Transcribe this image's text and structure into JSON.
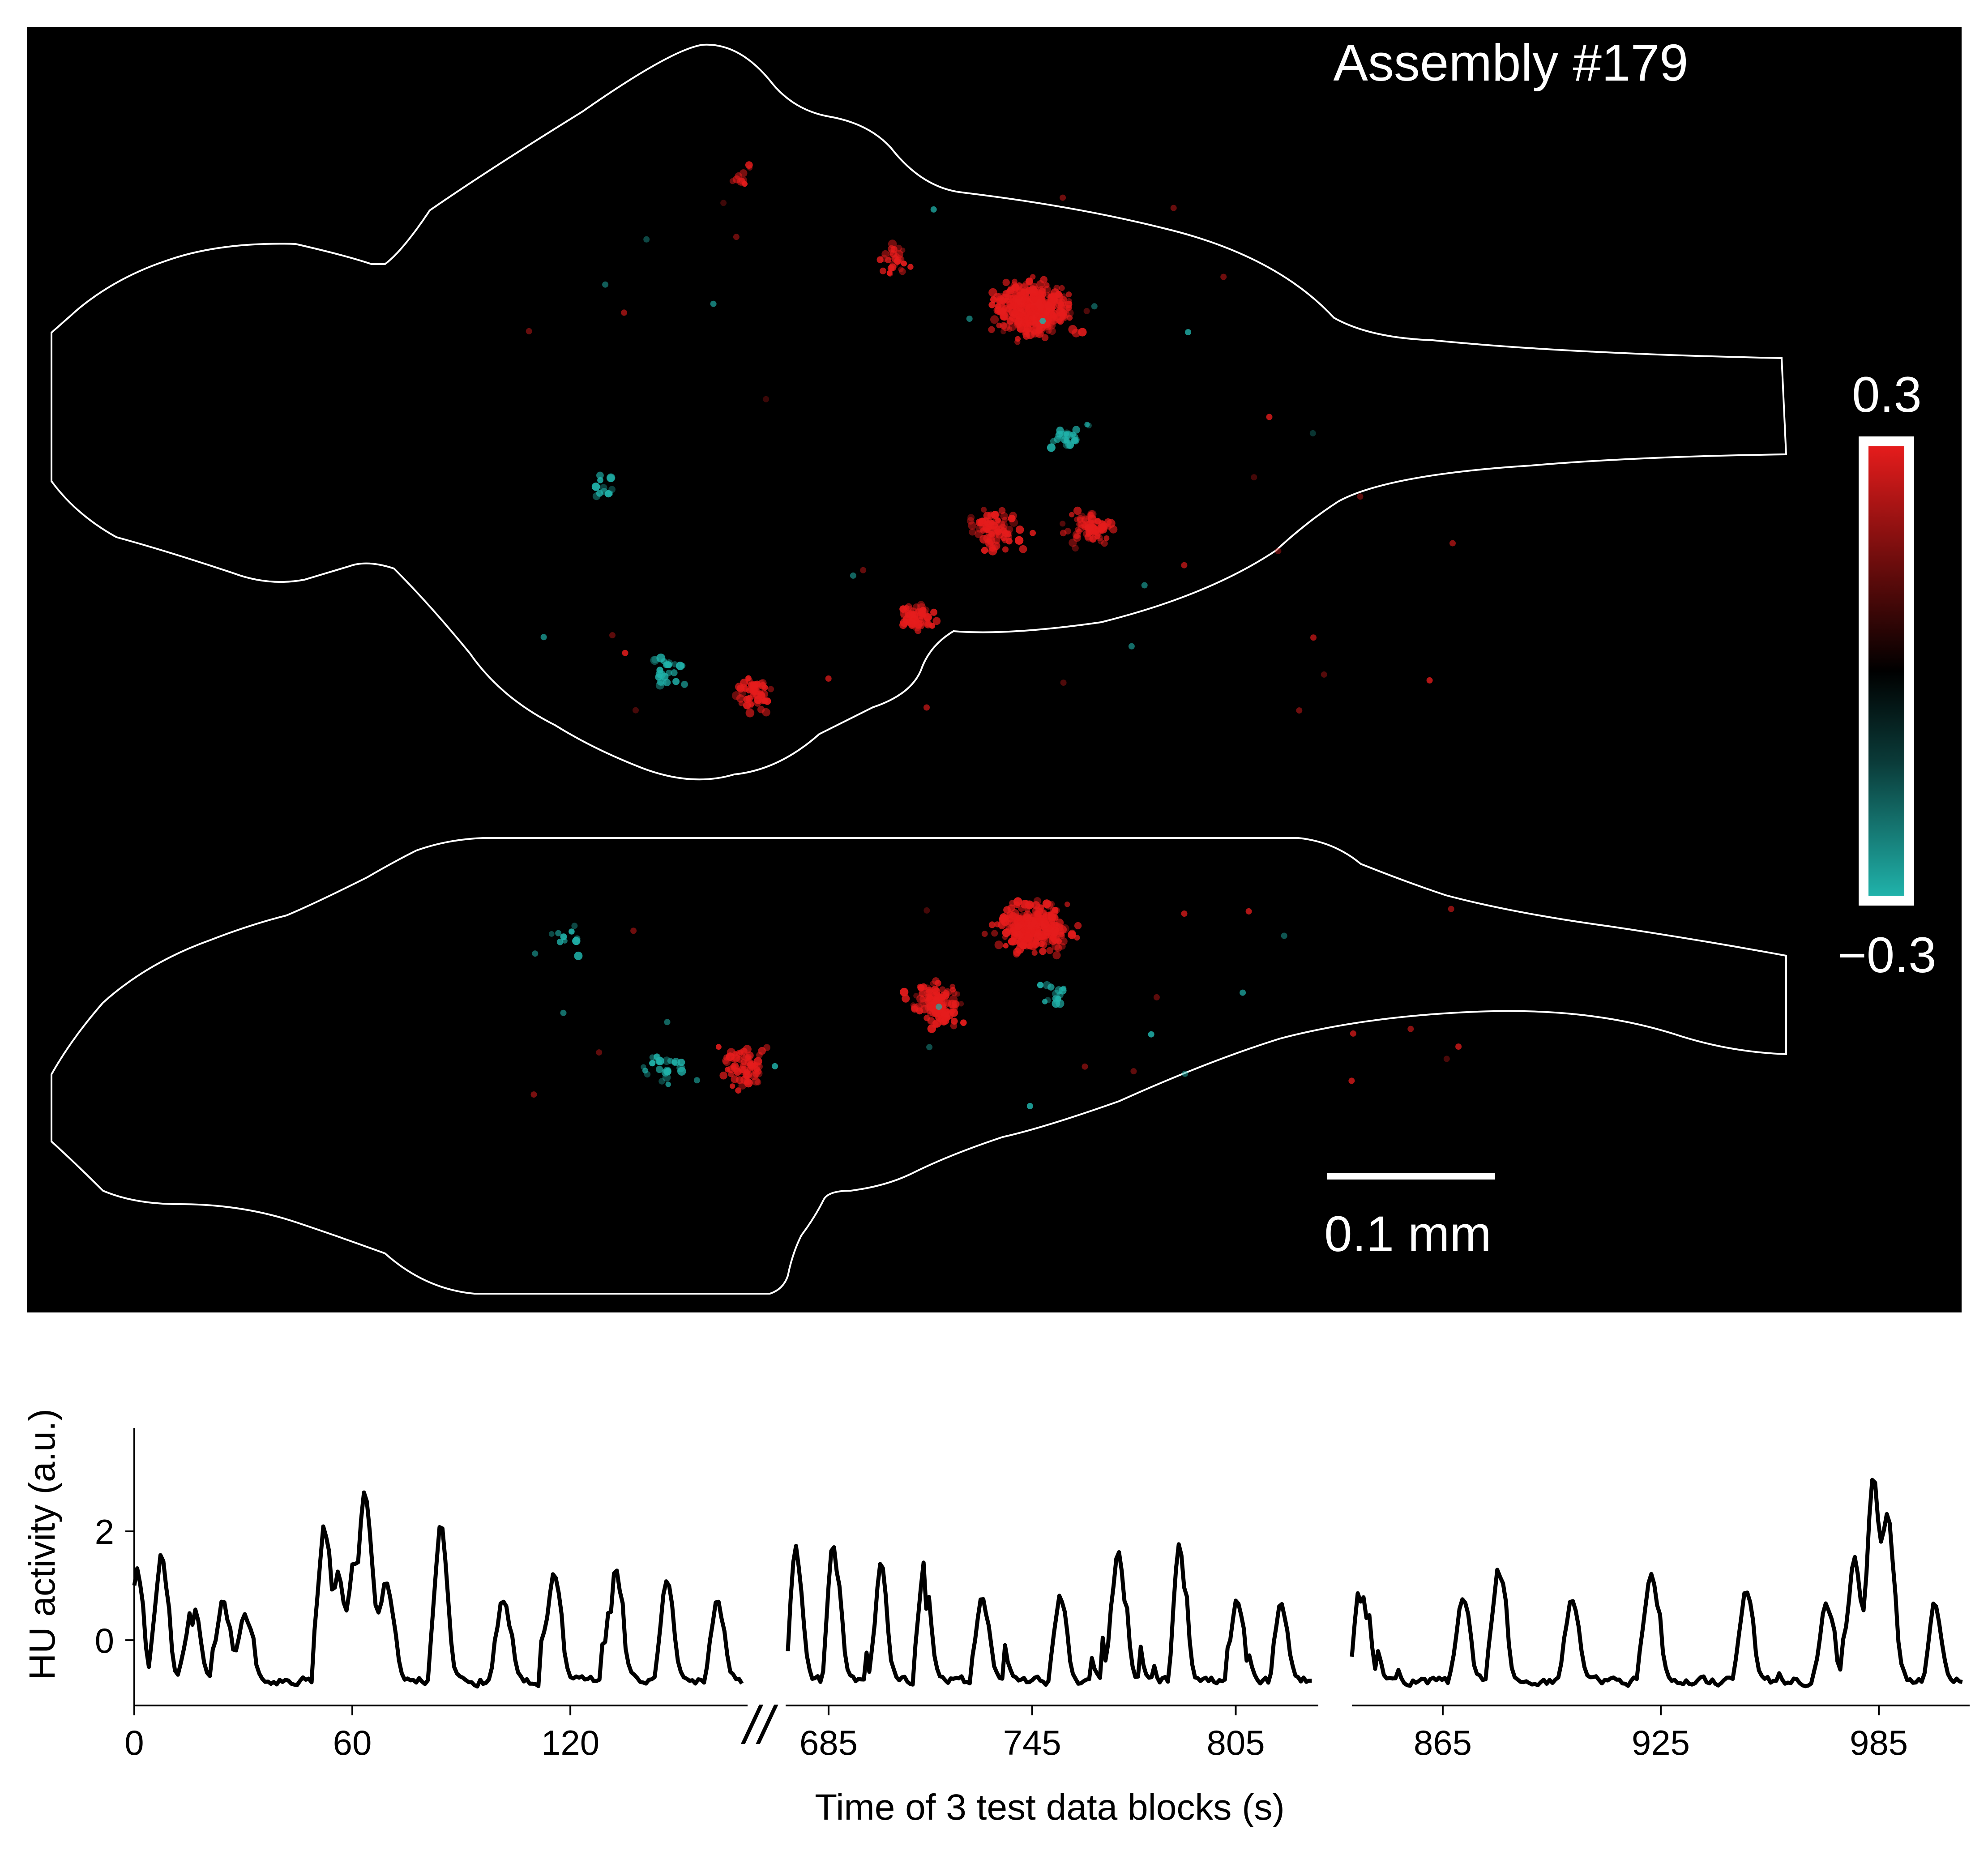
{
  "assembly_title": "Assembly #179",
  "colorbar": {
    "max_label": "0.3",
    "min_label": "−0.3",
    "max_value": 0.3,
    "min_value": -0.3,
    "colors": {
      "positive": "#e51c1c",
      "zero": "#000000",
      "negative": "#20b2aa"
    }
  },
  "scale_bar": {
    "label": "0.1 mm"
  },
  "colors": {
    "map_background": "#000000",
    "outline": "#ffffff",
    "trace": "#000000"
  },
  "chart_data": [
    {
      "type": "scatter",
      "title": "Assembly #179",
      "description_of_views": [
        "dorsal view",
        "lateral view"
      ],
      "series": [
        {
          "name": "positive weight",
          "color": "#e51c1c",
          "clusters": [
            {
              "view": "dorsal",
              "u": 0.52,
              "v": 0.22,
              "n": 420
            },
            {
              "view": "dorsal",
              "u": 0.45,
              "v": 0.18,
              "n": 30
            },
            {
              "view": "dorsal",
              "u": 0.5,
              "v": 0.39,
              "n": 80
            },
            {
              "view": "dorsal",
              "u": 0.55,
              "v": 0.39,
              "n": 70
            },
            {
              "view": "dorsal",
              "u": 0.46,
              "v": 0.46,
              "n": 60
            },
            {
              "view": "dorsal",
              "u": 0.375,
              "v": 0.52,
              "n": 60
            },
            {
              "view": "dorsal",
              "u": 0.37,
              "v": 0.12,
              "n": 10
            },
            {
              "view": "lateral",
              "u": 0.52,
              "v": 0.7,
              "n": 320
            },
            {
              "view": "lateral",
              "u": 0.47,
              "v": 0.76,
              "n": 120
            },
            {
              "view": "lateral",
              "u": 0.37,
              "v": 0.81,
              "n": 70
            }
          ]
        },
        {
          "name": "negative weight",
          "color": "#20b2aa",
          "clusters": [
            {
              "view": "dorsal",
              "u": 0.33,
              "v": 0.5,
              "n": 25
            },
            {
              "view": "dorsal",
              "u": 0.54,
              "v": 0.32,
              "n": 25
            },
            {
              "view": "dorsal",
              "u": 0.3,
              "v": 0.36,
              "n": 12
            },
            {
              "view": "lateral",
              "u": 0.33,
              "v": 0.81,
              "n": 25
            },
            {
              "view": "lateral",
              "u": 0.53,
              "v": 0.75,
              "n": 15
            },
            {
              "view": "lateral",
              "u": 0.28,
              "v": 0.71,
              "n": 10
            }
          ]
        }
      ]
    },
    {
      "type": "line",
      "title": "",
      "xlabel": "Time of 3 test data blocks (s)",
      "ylabel": "HU activity (a.u.)",
      "ylim": [
        -1.2,
        3.9
      ],
      "yticks": [
        0,
        2
      ],
      "ytick_labels": [
        "0",
        "2"
      ],
      "break_marker": "//",
      "blocks": [
        {
          "xlim": [
            0,
            170
          ],
          "xticks": [
            0,
            60,
            120
          ],
          "xtick_labels": [
            "0",
            "60",
            "120"
          ],
          "peaks": [
            [
              0,
              2.4
            ],
            [
              7,
              2.1
            ],
            [
              16,
              1.1
            ],
            [
              24,
              1.0
            ],
            [
              30,
              0.7
            ],
            [
              52,
              2.6
            ],
            [
              56,
              1.5
            ],
            [
              60,
              1.8
            ],
            [
              63,
              3.4
            ],
            [
              69,
              1.4
            ],
            [
              84,
              2.6
            ],
            [
              101,
              1.1
            ],
            [
              115,
              1.6
            ],
            [
              132,
              1.8
            ],
            [
              146,
              1.6
            ],
            [
              160,
              1.0
            ]
          ]
        },
        {
          "xlim": [
            673,
            830
          ],
          "xticks": [
            685,
            745,
            805
          ],
          "xtick_labels": [
            "685",
            "745",
            "805"
          ],
          "peaks": [
            [
              675,
              2.3
            ],
            [
              686,
              2.3
            ],
            [
              700,
              1.9
            ],
            [
              713,
              1.8
            ],
            [
              730,
              1.1
            ],
            [
              753,
              1.1
            ],
            [
              770,
              2.1
            ],
            [
              788,
              2.3
            ],
            [
              805,
              1.0
            ],
            [
              818,
              1.0
            ]
          ]
        },
        {
          "xlim": [
            840,
            1010
          ],
          "xticks": [
            865,
            925,
            985
          ],
          "xtick_labels": [
            "865",
            "925",
            "985"
          ],
          "peaks": [
            [
              842,
              1.6
            ],
            [
              870,
              1.1
            ],
            [
              880,
              1.7
            ],
            [
              900,
              1.0
            ],
            [
              922,
              1.6
            ],
            [
              948,
              1.2
            ],
            [
              970,
              1.0
            ],
            [
              978,
              2.1
            ],
            [
              983,
              3.8
            ],
            [
              987,
              2.8
            ],
            [
              1000,
              1.0
            ]
          ]
        }
      ]
    }
  ]
}
